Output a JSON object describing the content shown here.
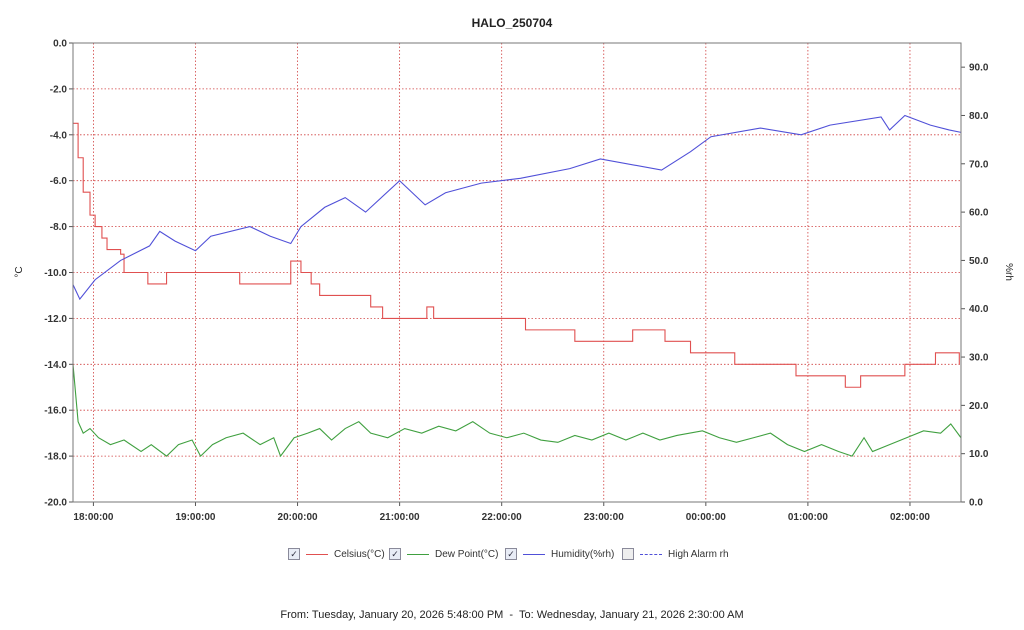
{
  "chart_data": {
    "type": "line",
    "title": "HALO_250704",
    "ylabel_left": "°C",
    "ylabel_right": "%rh",
    "x_unit": "minutes since 17:48:00",
    "xlim": [
      0,
      522
    ],
    "ylim_left": [
      -20,
      0
    ],
    "ylim_right": [
      0,
      95
    ],
    "left_ticks": [
      "0.0",
      "-2.0",
      "-4.0",
      "-6.0",
      "-8.0",
      "-10.0",
      "-12.0",
      "-14.0",
      "-16.0",
      "-18.0",
      "-20.0"
    ],
    "right_ticks": [
      "0.0",
      "10.0",
      "20.0",
      "30.0",
      "40.0",
      "50.0",
      "60.0",
      "70.0",
      "80.0",
      "90.0"
    ],
    "x_ticks": [
      "18:00:00",
      "19:00:00",
      "20:00:00",
      "21:00:00",
      "22:00:00",
      "23:00:00",
      "00:00:00",
      "01:00:00",
      "02:00:00"
    ],
    "grid": true,
    "series": [
      {
        "name": "Celsius(°C)",
        "axis": "left",
        "color": "#e05050",
        "step": true,
        "checked": true,
        "points": [
          [
            0,
            -3.5
          ],
          [
            3,
            -5
          ],
          [
            6,
            -6.5
          ],
          [
            10,
            -7.5
          ],
          [
            13,
            -8
          ],
          [
            17,
            -8.5
          ],
          [
            20,
            -9
          ],
          [
            28,
            -9.2
          ],
          [
            30,
            -10
          ],
          [
            44,
            -10.5
          ],
          [
            55,
            -10
          ],
          [
            98,
            -10.5
          ],
          [
            128,
            -9.5
          ],
          [
            134,
            -10
          ],
          [
            140,
            -10.5
          ],
          [
            145,
            -11
          ],
          [
            175,
            -11.5
          ],
          [
            182,
            -12
          ],
          [
            208,
            -11.5
          ],
          [
            212,
            -12
          ],
          [
            245,
            -12
          ],
          [
            266,
            -12.5
          ],
          [
            295,
            -13
          ],
          [
            329,
            -12.5
          ],
          [
            348,
            -13
          ],
          [
            363,
            -13.5
          ],
          [
            389,
            -14
          ],
          [
            425,
            -14.5
          ],
          [
            454,
            -15
          ],
          [
            463,
            -14.5
          ],
          [
            489,
            -14
          ],
          [
            507,
            -13.5
          ],
          [
            521,
            -14
          ]
        ]
      },
      {
        "name": "Dew Point(°C)",
        "axis": "left",
        "color": "#40a040",
        "step": false,
        "checked": true,
        "points": [
          [
            0,
            -14
          ],
          [
            3,
            -16.5
          ],
          [
            6,
            -17
          ],
          [
            10,
            -16.8
          ],
          [
            15,
            -17.2
          ],
          [
            22,
            -17.5
          ],
          [
            30,
            -17.3
          ],
          [
            40,
            -17.8
          ],
          [
            46,
            -17.5
          ],
          [
            55,
            -18
          ],
          [
            62,
            -17.5
          ],
          [
            70,
            -17.3
          ],
          [
            75,
            -18
          ],
          [
            82,
            -17.5
          ],
          [
            90,
            -17.2
          ],
          [
            100,
            -17
          ],
          [
            110,
            -17.5
          ],
          [
            118,
            -17.2
          ],
          [
            122,
            -18
          ],
          [
            130,
            -17.2
          ],
          [
            138,
            -17
          ],
          [
            145,
            -16.8
          ],
          [
            152,
            -17.3
          ],
          [
            160,
            -16.8
          ],
          [
            168,
            -16.5
          ],
          [
            175,
            -17
          ],
          [
            185,
            -17.2
          ],
          [
            195,
            -16.8
          ],
          [
            205,
            -17
          ],
          [
            215,
            -16.7
          ],
          [
            225,
            -16.9
          ],
          [
            235,
            -16.5
          ],
          [
            245,
            -17
          ],
          [
            255,
            -17.2
          ],
          [
            265,
            -17
          ],
          [
            275,
            -17.3
          ],
          [
            285,
            -17.4
          ],
          [
            295,
            -17.1
          ],
          [
            305,
            -17.3
          ],
          [
            315,
            -17
          ],
          [
            325,
            -17.3
          ],
          [
            335,
            -17
          ],
          [
            345,
            -17.3
          ],
          [
            355,
            -17.1
          ],
          [
            370,
            -16.9
          ],
          [
            380,
            -17.2
          ],
          [
            390,
            -17.4
          ],
          [
            400,
            -17.2
          ],
          [
            410,
            -17
          ],
          [
            420,
            -17.5
          ],
          [
            430,
            -17.8
          ],
          [
            440,
            -17.5
          ],
          [
            450,
            -17.8
          ],
          [
            458,
            -18
          ],
          [
            465,
            -17.2
          ],
          [
            470,
            -17.8
          ],
          [
            480,
            -17.5
          ],
          [
            490,
            -17.2
          ],
          [
            500,
            -16.9
          ],
          [
            510,
            -17
          ],
          [
            516,
            -16.6
          ],
          [
            522,
            -17.2
          ]
        ]
      },
      {
        "name": "Humidity(%rh)",
        "axis": "right",
        "color": "#5050d8",
        "step": false,
        "checked": true,
        "points": [
          [
            0,
            45
          ],
          [
            4,
            42
          ],
          [
            13,
            46
          ],
          [
            28,
            50
          ],
          [
            45,
            53
          ],
          [
            51,
            56
          ],
          [
            60,
            54
          ],
          [
            72,
            52
          ],
          [
            81,
            55
          ],
          [
            104,
            57
          ],
          [
            116,
            55
          ],
          [
            128,
            53.5
          ],
          [
            134,
            57
          ],
          [
            148,
            61
          ],
          [
            160,
            63
          ],
          [
            172,
            60
          ],
          [
            192,
            66.5
          ],
          [
            207,
            61.5
          ],
          [
            219,
            64
          ],
          [
            240,
            66
          ],
          [
            263,
            67
          ],
          [
            292,
            69
          ],
          [
            310,
            71
          ],
          [
            346,
            68.7
          ],
          [
            363,
            72.5
          ],
          [
            375,
            75.6
          ],
          [
            404,
            77.4
          ],
          [
            428,
            76
          ],
          [
            445,
            78
          ],
          [
            475,
            79.7
          ],
          [
            480,
            77
          ],
          [
            489,
            80
          ],
          [
            504,
            78
          ],
          [
            515,
            77
          ],
          [
            522,
            76.5
          ]
        ]
      },
      {
        "name": "High Alarm rh",
        "axis": "right",
        "color": "#5050d8",
        "dashed": true,
        "checked": false,
        "points": []
      }
    ]
  },
  "footer": "From: Tuesday, January 20, 2026 5:48:00 PM  -  To: Wednesday, January 21, 2026 2:30:00 AM"
}
